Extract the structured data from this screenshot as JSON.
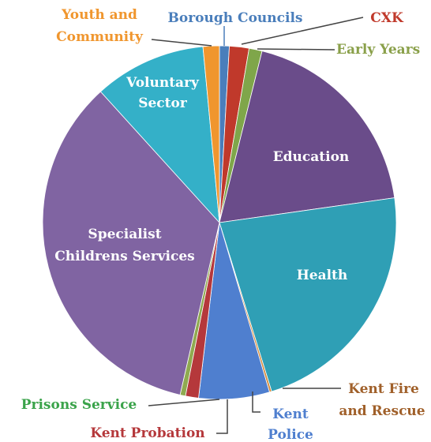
{
  "chart_data": {
    "type": "pie",
    "title": "",
    "slices": [
      {
        "label": "Borough Councils",
        "value": 0.9,
        "color": "#4a7ebb"
      },
      {
        "label": "CXK",
        "value": 1.8,
        "color": "#c0392b"
      },
      {
        "label": "Early Years",
        "value": 1.2,
        "color": "#7fa64a"
      },
      {
        "label": "Education",
        "value": 19.0,
        "color": "#6a4c8a"
      },
      {
        "label": "Health",
        "value": 22.6,
        "color": "#2f9fb5"
      },
      {
        "label": "Kent Fire and Rescue",
        "value": 0.2,
        "color": "#d4893a"
      },
      {
        "label": "Kent Police",
        "value": 6.5,
        "color": "#4f7fcf"
      },
      {
        "label": "Kent Probation",
        "value": 1.2,
        "color": "#b5383b"
      },
      {
        "label": "Prisons Service",
        "value": 0.5,
        "color": "#8faa50"
      },
      {
        "label": "Specialist Childrens Services",
        "value": 34.9,
        "color": "#8064a2"
      },
      {
        "label": "Voluntary Sector",
        "value": 10.3,
        "color": "#34b0c8"
      },
      {
        "label": "Youth and Community",
        "value": 1.5,
        "color": "#f0962e"
      }
    ],
    "labels": {
      "youth_line1": "Youth and",
      "youth_line2": "Community",
      "borough": "Borough Councils",
      "cxk": "CXK",
      "early": "Early Years",
      "voluntary_line1": "Voluntary",
      "voluntary_line2": "Sector",
      "education": "Education",
      "specialist_line1": "Specialist",
      "specialist_line2": "Childrens Services",
      "health": "Health",
      "fire_line1": "Kent Fire",
      "fire_line2": "and Rescue",
      "police_line1": "Kent",
      "police_line2": "Police",
      "prisons": "Prisons Service",
      "probation": "Kent Probation"
    },
    "label_colors": {
      "youth": "#f0962e",
      "borough": "#4a7ebb",
      "cxk": "#c0392b",
      "early": "#8aa04a",
      "fire": "#a0602a",
      "police": "#4f7fcf",
      "prisons": "#3aa34a",
      "probation": "#b5383b"
    }
  }
}
